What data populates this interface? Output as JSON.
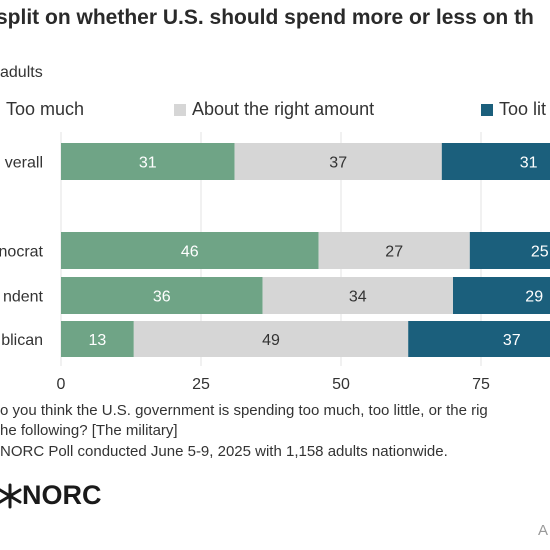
{
  "chart_data": {
    "type": "bar",
    "stacked": true,
    "orientation": "horizontal",
    "title": "split on whether U.S. should spend more or less on th",
    "subtitle": "adults",
    "categories": [
      "verall",
      "nocrat",
      "ndent",
      "blican"
    ],
    "series": [
      {
        "name": "Too much",
        "values": [
          31,
          46,
          36,
          13
        ],
        "labels": [
          "31",
          "46",
          "36",
          "13"
        ],
        "color": "#6fa486"
      },
      {
        "name": "About the right amount",
        "values": [
          37,
          27,
          34,
          49
        ],
        "labels": [
          "37",
          "27",
          "34",
          "49"
        ],
        "color": "#d6d6d6"
      },
      {
        "name": "Too lit",
        "values": [
          31,
          25,
          29,
          37
        ],
        "labels": [
          "31",
          "25",
          "29",
          "37"
        ],
        "color": "#1b5f7c"
      }
    ],
    "xlim": [
      0,
      100
    ],
    "xticks": [
      "0",
      "25",
      "50",
      "75"
    ],
    "grid": true,
    "legend": "top"
  },
  "notes": {
    "question_line1": "o you think the U.S. government is spending too much, too little, or the rig",
    "question_line2": "he following? [The military]",
    "source": "NORC Poll conducted June 5-9, 2025 with 1,158 adults nationwide."
  },
  "logo": {
    "text": "NORC"
  },
  "credit": "A"
}
